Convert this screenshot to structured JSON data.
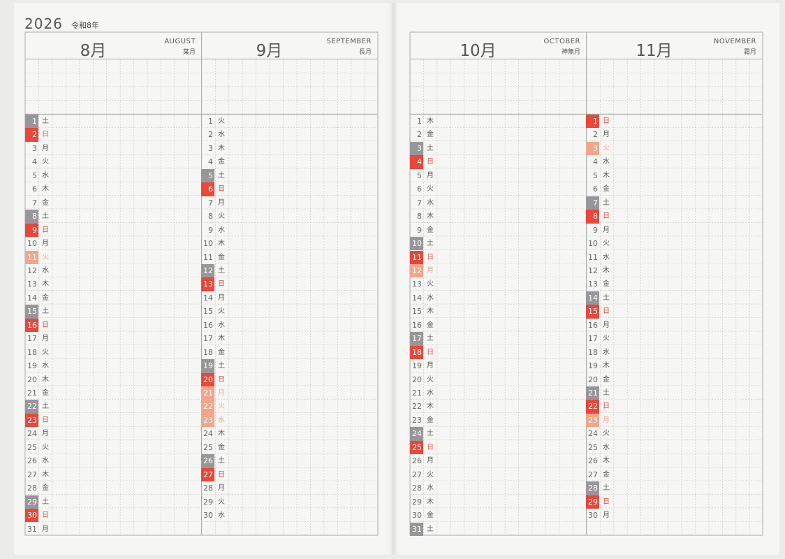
{
  "header": {
    "year": "2026",
    "era": "令和8年"
  },
  "left_page": {
    "months": [
      {
        "num": "8月",
        "en": "AUGUST",
        "jp": "葉月",
        "days": [
          [
            "1",
            "土",
            "sat"
          ],
          [
            "2",
            "日",
            "sun"
          ],
          [
            "3",
            "月",
            ""
          ],
          [
            "4",
            "火",
            ""
          ],
          [
            "5",
            "水",
            ""
          ],
          [
            "6",
            "木",
            ""
          ],
          [
            "7",
            "金",
            ""
          ],
          [
            "8",
            "土",
            "sat"
          ],
          [
            "9",
            "日",
            "sun"
          ],
          [
            "10",
            "月",
            ""
          ],
          [
            "11",
            "火",
            "hol"
          ],
          [
            "12",
            "水",
            ""
          ],
          [
            "13",
            "木",
            ""
          ],
          [
            "14",
            "金",
            ""
          ],
          [
            "15",
            "土",
            "sat"
          ],
          [
            "16",
            "日",
            "sun"
          ],
          [
            "17",
            "月",
            ""
          ],
          [
            "18",
            "火",
            ""
          ],
          [
            "19",
            "水",
            ""
          ],
          [
            "20",
            "木",
            ""
          ],
          [
            "21",
            "金",
            ""
          ],
          [
            "22",
            "土",
            "sat"
          ],
          [
            "23",
            "日",
            "sun"
          ],
          [
            "24",
            "月",
            ""
          ],
          [
            "25",
            "火",
            ""
          ],
          [
            "26",
            "水",
            ""
          ],
          [
            "27",
            "木",
            ""
          ],
          [
            "28",
            "金",
            ""
          ],
          [
            "29",
            "土",
            "sat"
          ],
          [
            "30",
            "日",
            "sun"
          ],
          [
            "31",
            "月",
            ""
          ]
        ]
      },
      {
        "num": "9月",
        "en": "SEPTEMBER",
        "jp": "長月",
        "days": [
          [
            "1",
            "火",
            ""
          ],
          [
            "2",
            "水",
            ""
          ],
          [
            "3",
            "木",
            ""
          ],
          [
            "4",
            "金",
            ""
          ],
          [
            "5",
            "土",
            "sat"
          ],
          [
            "6",
            "日",
            "sun"
          ],
          [
            "7",
            "月",
            ""
          ],
          [
            "8",
            "火",
            ""
          ],
          [
            "9",
            "水",
            ""
          ],
          [
            "10",
            "木",
            ""
          ],
          [
            "11",
            "金",
            ""
          ],
          [
            "12",
            "土",
            "sat"
          ],
          [
            "13",
            "日",
            "sun"
          ],
          [
            "14",
            "月",
            ""
          ],
          [
            "15",
            "火",
            ""
          ],
          [
            "16",
            "水",
            ""
          ],
          [
            "17",
            "木",
            ""
          ],
          [
            "18",
            "金",
            ""
          ],
          [
            "19",
            "土",
            "sat"
          ],
          [
            "20",
            "日",
            "sun"
          ],
          [
            "21",
            "月",
            "hol"
          ],
          [
            "22",
            "火",
            "hol"
          ],
          [
            "23",
            "水",
            "hol"
          ],
          [
            "24",
            "木",
            ""
          ],
          [
            "25",
            "金",
            ""
          ],
          [
            "26",
            "土",
            "sat"
          ],
          [
            "27",
            "日",
            "sun"
          ],
          [
            "28",
            "月",
            ""
          ],
          [
            "29",
            "火",
            ""
          ],
          [
            "30",
            "水",
            ""
          ]
        ]
      }
    ]
  },
  "right_page": {
    "months": [
      {
        "num": "10月",
        "en": "OCTOBER",
        "jp": "神無月",
        "days": [
          [
            "1",
            "木",
            ""
          ],
          [
            "2",
            "金",
            ""
          ],
          [
            "3",
            "土",
            "sat"
          ],
          [
            "4",
            "日",
            "sun"
          ],
          [
            "5",
            "月",
            ""
          ],
          [
            "6",
            "火",
            ""
          ],
          [
            "7",
            "水",
            ""
          ],
          [
            "8",
            "木",
            ""
          ],
          [
            "9",
            "金",
            ""
          ],
          [
            "10",
            "土",
            "sat"
          ],
          [
            "11",
            "日",
            "sun"
          ],
          [
            "12",
            "月",
            "hol"
          ],
          [
            "13",
            "火",
            ""
          ],
          [
            "14",
            "水",
            ""
          ],
          [
            "15",
            "木",
            ""
          ],
          [
            "16",
            "金",
            ""
          ],
          [
            "17",
            "土",
            "sat"
          ],
          [
            "18",
            "日",
            "sun"
          ],
          [
            "19",
            "月",
            ""
          ],
          [
            "20",
            "火",
            ""
          ],
          [
            "21",
            "水",
            ""
          ],
          [
            "22",
            "木",
            ""
          ],
          [
            "23",
            "金",
            ""
          ],
          [
            "24",
            "土",
            "sat"
          ],
          [
            "25",
            "日",
            "sun"
          ],
          [
            "26",
            "月",
            ""
          ],
          [
            "27",
            "火",
            ""
          ],
          [
            "28",
            "水",
            ""
          ],
          [
            "29",
            "木",
            ""
          ],
          [
            "30",
            "金",
            ""
          ],
          [
            "31",
            "土",
            "sat"
          ]
        ]
      },
      {
        "num": "11月",
        "en": "NOVEMBER",
        "jp": "霜月",
        "days": [
          [
            "1",
            "日",
            "sun"
          ],
          [
            "2",
            "月",
            ""
          ],
          [
            "3",
            "火",
            "hol"
          ],
          [
            "4",
            "水",
            ""
          ],
          [
            "5",
            "木",
            ""
          ],
          [
            "6",
            "金",
            ""
          ],
          [
            "7",
            "土",
            "sat"
          ],
          [
            "8",
            "日",
            "sun"
          ],
          [
            "9",
            "月",
            ""
          ],
          [
            "10",
            "火",
            ""
          ],
          [
            "11",
            "水",
            ""
          ],
          [
            "12",
            "木",
            ""
          ],
          [
            "13",
            "金",
            ""
          ],
          [
            "14",
            "土",
            "sat"
          ],
          [
            "15",
            "日",
            "sun"
          ],
          [
            "16",
            "月",
            ""
          ],
          [
            "17",
            "火",
            ""
          ],
          [
            "18",
            "水",
            ""
          ],
          [
            "19",
            "木",
            ""
          ],
          [
            "20",
            "金",
            ""
          ],
          [
            "21",
            "土",
            "sat"
          ],
          [
            "22",
            "日",
            "sun"
          ],
          [
            "23",
            "月",
            "hol"
          ],
          [
            "24",
            "火",
            ""
          ],
          [
            "25",
            "水",
            ""
          ],
          [
            "26",
            "木",
            ""
          ],
          [
            "27",
            "金",
            ""
          ],
          [
            "28",
            "土",
            "sat"
          ],
          [
            "29",
            "日",
            "sun"
          ],
          [
            "30",
            "月",
            ""
          ]
        ]
      }
    ]
  },
  "colors": {
    "saturday": "#979799",
    "sunday": "#e8473a",
    "holiday": "#f2a58a",
    "grid": "#c9cbc8",
    "rule": "#a9aba9"
  }
}
